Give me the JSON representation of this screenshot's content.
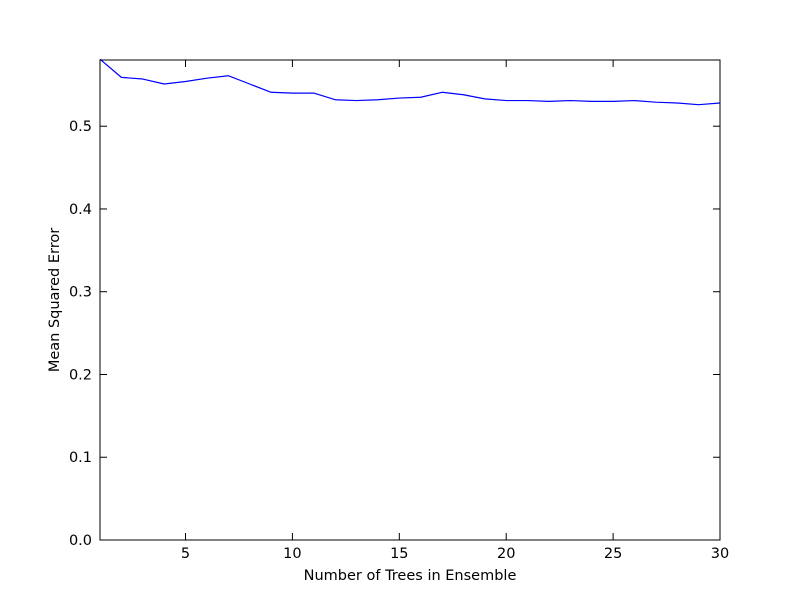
{
  "chart_data": {
    "type": "line",
    "xlabel": "Number of Trees in Ensemble",
    "ylabel": "Mean Squared Error",
    "xlim": [
      1,
      30
    ],
    "ylim": [
      0.0,
      0.58
    ],
    "x_ticks": [
      5,
      10,
      15,
      20,
      25,
      30
    ],
    "x_tick_labels": [
      "5",
      "10",
      "15",
      "20",
      "25",
      "30"
    ],
    "y_ticks": [
      0.0,
      0.1,
      0.2,
      0.3,
      0.4,
      0.5
    ],
    "y_tick_labels": [
      "0.0",
      "0.1",
      "0.2",
      "0.3",
      "0.4",
      "0.5"
    ],
    "grid": false,
    "series": [
      {
        "color": "#0000ff",
        "x": [
          1,
          2,
          3,
          4,
          5,
          6,
          7,
          8,
          9,
          10,
          11,
          12,
          13,
          14,
          15,
          16,
          17,
          18,
          19,
          20,
          21,
          22,
          23,
          24,
          25,
          26,
          27,
          28,
          29,
          30
        ],
        "values": [
          0.581,
          0.559,
          0.557,
          0.551,
          0.554,
          0.558,
          0.561,
          0.551,
          0.541,
          0.54,
          0.54,
          0.532,
          0.531,
          0.532,
          0.534,
          0.535,
          0.541,
          0.538,
          0.533,
          0.531,
          0.531,
          0.53,
          0.531,
          0.53,
          0.53,
          0.531,
          0.529,
          0.528,
          0.526,
          0.528
        ]
      }
    ]
  }
}
